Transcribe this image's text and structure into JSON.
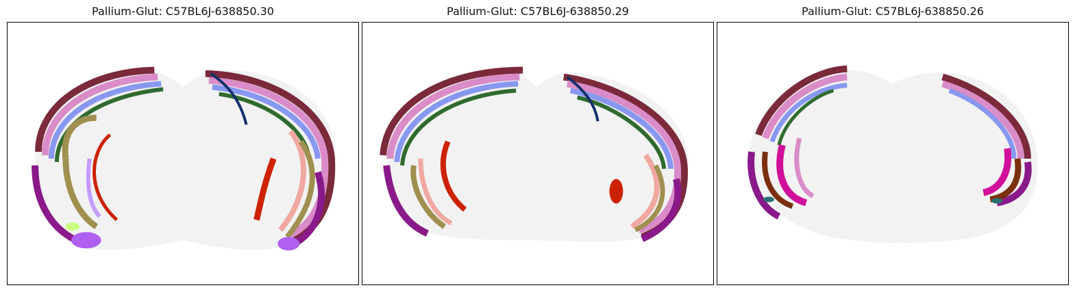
{
  "figure": {
    "panels": [
      {
        "title": "Pallium-Glut: C57BL6J-638850.30"
      },
      {
        "title": "Pallium-Glut: C57BL6J-638850.29"
      },
      {
        "title": "Pallium-Glut: C57BL6J-638850.26"
      }
    ]
  },
  "colors": {
    "background_tissue": "#f2f2f2",
    "layer_outer_maroon": "#7a2a3a",
    "layer_pink": "#d98cc8",
    "layer_purple": "#b070c8",
    "layer_blue": "#8898f0",
    "layer_green": "#2f6b2f",
    "layer_olive": "#a09050",
    "layer_salmon": "#f0a8a0",
    "hippocampus_red": "#cc2200",
    "lavender": "#c49cff",
    "magenta": "#d0109a",
    "dark_purple": "#8a1a8a",
    "brown": "#7a3010",
    "navy": "#10306a",
    "lime": "#c8ff80",
    "teal": "#2a7070"
  }
}
